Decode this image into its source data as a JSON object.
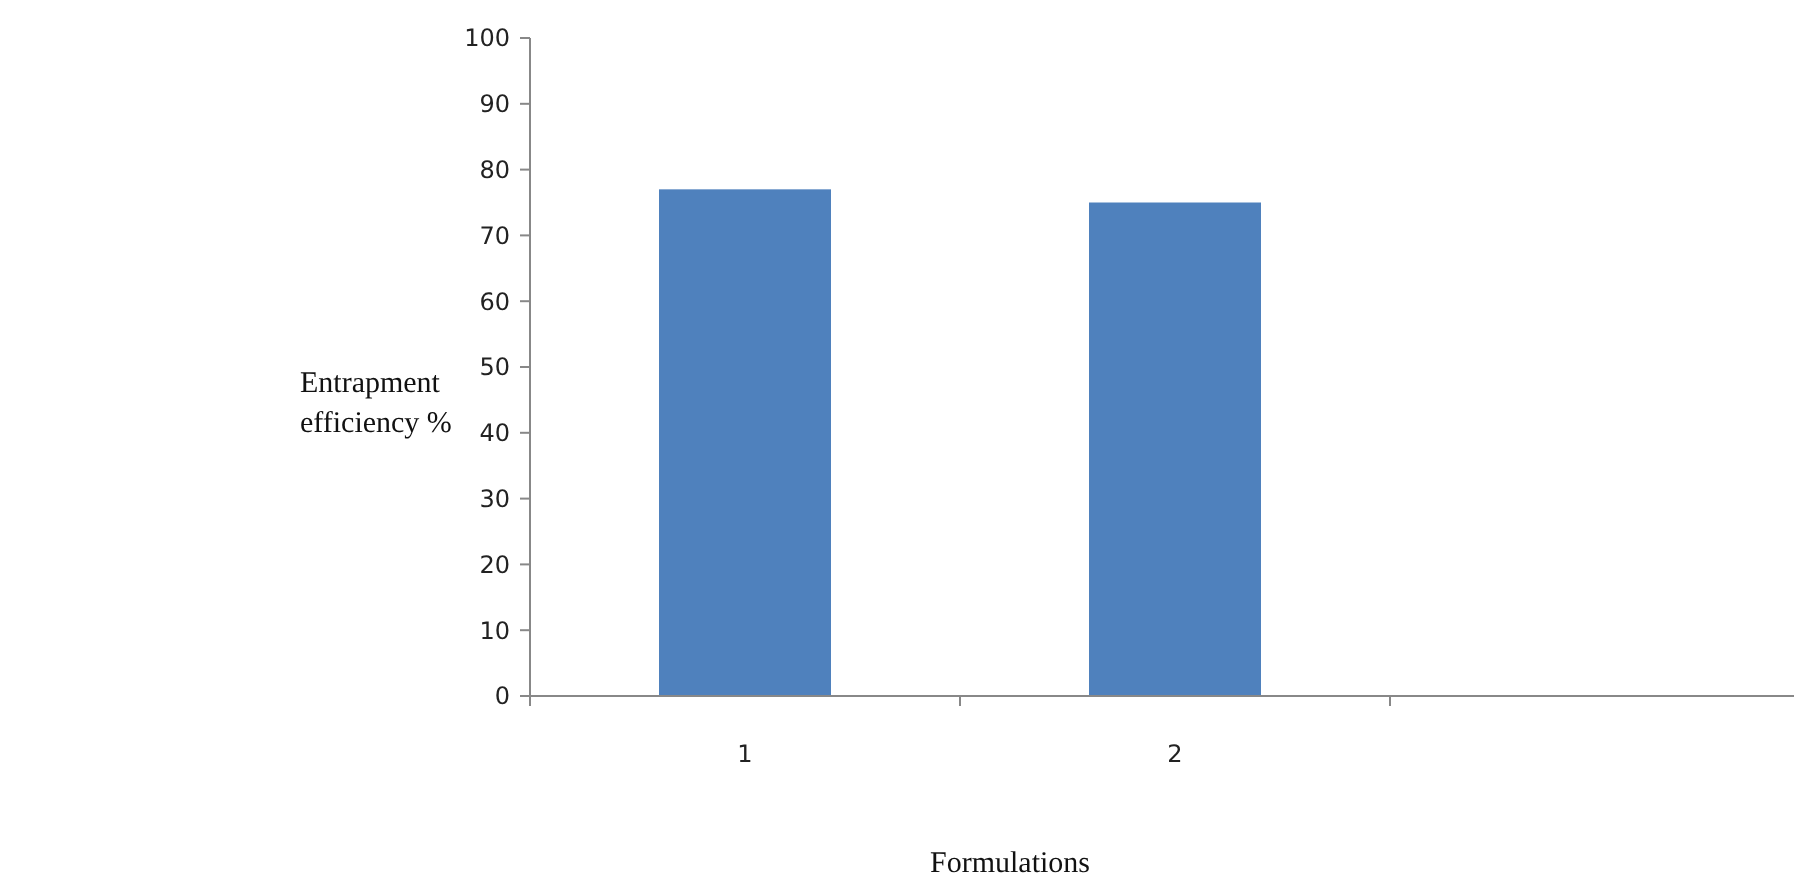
{
  "chart_data": {
    "type": "bar",
    "xlabel": "Formulations",
    "ylabel": "Entrapment efficiency %",
    "categories": [
      "1",
      "2",
      null
    ],
    "values": [
      77,
      75,
      null
    ],
    "color": "#4f81bd",
    "ylim": [
      0,
      100
    ],
    "yticks": [
      0,
      10,
      20,
      30,
      40,
      50,
      60,
      70,
      80,
      90,
      100
    ],
    "grid": false
  }
}
